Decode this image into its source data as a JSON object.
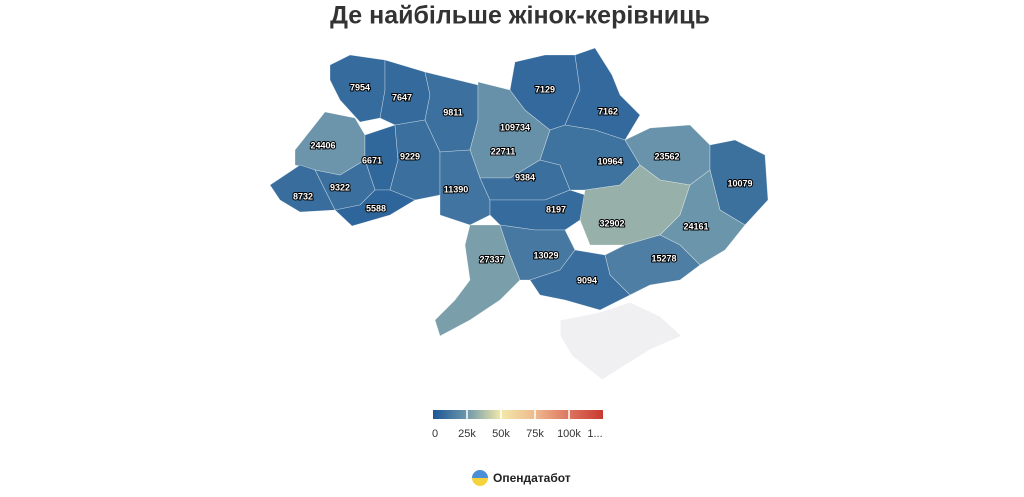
{
  "chart_data": {
    "type": "choropleth",
    "title": "Де найбільше жінок-керівниць",
    "values": [
      7954,
      7647,
      9811,
      109734,
      22711,
      7129,
      7162,
      24406,
      6671,
      9229,
      9322,
      8732,
      5588,
      11390,
      9384,
      10964,
      23562,
      10079,
      8197,
      32902,
      24161,
      27337,
      13029,
      15278,
      9094
    ],
    "clim": [
      0,
      125000
    ],
    "cticks": [
      0,
      {
        "value": 25000,
        "label": "25k"
      },
      {
        "value": 50000,
        "label": "50k"
      },
      {
        "value": 75000,
        "label": "75k"
      },
      {
        "value": 100000,
        "label": "100k"
      },
      {
        "value": 125000,
        "label": "1..."
      }
    ],
    "colors": [
      "#1b5796",
      "#6e97ab",
      "#f1e9a9",
      "#efb98d",
      "#dc7560",
      "#c9392f"
    ],
    "source": "Опендатабот"
  }
}
